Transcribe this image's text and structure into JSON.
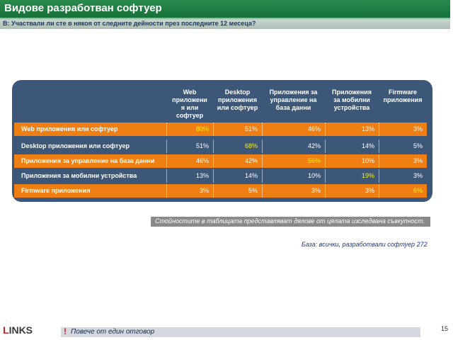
{
  "title": "Видове разработван софтуер",
  "question": "В: Участвали ли сте в някоя от следните дейности през последните 12 месеца?",
  "table": {
    "columns": [
      "Web\nприложени\nя или\nсофтуер",
      "Desktop\nприложения\nили софтуер",
      "Приложения за\nуправление на\nбаза данни",
      "Приложения\nза мобилни\nустройства",
      "Firmware\nприложения"
    ],
    "rows": [
      {
        "label": "Web приложения или софтуер",
        "values": [
          "80%",
          "51%",
          "46%",
          "13%",
          "3%"
        ],
        "highlight": 0,
        "style": "orange"
      },
      {
        "label": "Desktop приложения или софтуер",
        "values": [
          "51%",
          "68%",
          "42%",
          "14%",
          "5%"
        ],
        "highlight": 1,
        "style": "blue"
      },
      {
        "label": "Приложения за управление на база данни",
        "values": [
          "46%",
          "42%",
          "56%",
          "10%",
          "3%"
        ],
        "highlight": 2,
        "style": "orange"
      },
      {
        "label": "Приложения за мобилни устройства",
        "values": [
          "13%",
          "14%",
          "10%",
          "19%",
          "3%"
        ],
        "highlight": 3,
        "style": "blue"
      },
      {
        "label": "Firmware приложения",
        "values": [
          "3%",
          "5%",
          "3%",
          "3%",
          "6%"
        ],
        "highlight": 4,
        "style": "orange"
      }
    ]
  },
  "note": "Стойностите в таблицата представляват дялове от цялата изследвана съвкупност.",
  "base": "База: всички, разработвали софтуер 272",
  "logo": {
    "dot": "I",
    "rest": "NKS",
    "lead": "L"
  },
  "footer": {
    "mark": "!",
    "text": "Повече от един отговор"
  },
  "page_number": "15",
  "colors": {
    "title_green": "#17703a",
    "panel_blue": "#3d5778",
    "row_orange": "#f07f13",
    "highlight_yellow": "#fff200"
  }
}
